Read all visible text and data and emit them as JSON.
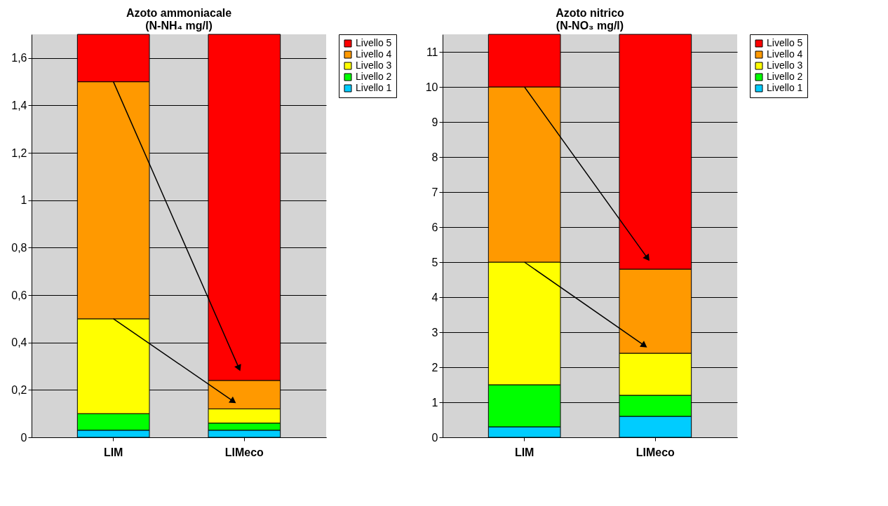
{
  "chart_data": [
    {
      "type": "bar",
      "stacked": true,
      "title": "Azoto ammoniacale\n(N-NH₄ mg/l)",
      "categories": [
        "LIM",
        "LIMeco"
      ],
      "series": [
        {
          "name": "Livello 1",
          "color": "#00ccff",
          "values": [
            0.03,
            0.03
          ]
        },
        {
          "name": "Livello 2",
          "color": "#00ff00",
          "values": [
            0.07,
            0.03
          ]
        },
        {
          "name": "Livello 3",
          "color": "#ffff00",
          "values": [
            0.4,
            0.06
          ]
        },
        {
          "name": "Livello 4",
          "color": "#ff9900",
          "values": [
            1.0,
            0.12
          ]
        },
        {
          "name": "Livello 5",
          "color": "#ff0000",
          "values": [
            0.2,
            1.46
          ]
        }
      ],
      "ylim": [
        0,
        1.7
      ],
      "yticks": [
        0,
        {
          "value": 0.2,
          "label": "0,2"
        },
        {
          "value": 0.4,
          "label": "0,4"
        },
        {
          "value": 0.6,
          "label": "0,6"
        },
        {
          "value": 0.8,
          "label": "0,8"
        },
        1,
        {
          "value": 1.2,
          "label": "1,2"
        },
        {
          "value": 1.4,
          "label": "1,4"
        },
        {
          "value": 1.6,
          "label": "1,6"
        }
      ],
      "grid": "y",
      "legend": "right"
    },
    {
      "type": "bar",
      "stacked": true,
      "title": "Azoto nitrico\n(N-NO₃ mg/l)",
      "categories": [
        "LIM",
        "LIMeco"
      ],
      "series": [
        {
          "name": "Livello 1",
          "color": "#00ccff",
          "values": [
            0.3,
            0.6
          ]
        },
        {
          "name": "Livello 2",
          "color": "#00ff00",
          "values": [
            1.2,
            0.6
          ]
        },
        {
          "name": "Livello 3",
          "color": "#ffff00",
          "values": [
            3.5,
            1.2
          ]
        },
        {
          "name": "Livello 4",
          "color": "#ff9900",
          "values": [
            5.0,
            2.4
          ]
        },
        {
          "name": "Livello 5",
          "color": "#ff0000",
          "values": [
            1.5,
            6.7
          ]
        }
      ],
      "ylim": [
        0,
        11.5
      ],
      "yticks": [
        0,
        1,
        2,
        3,
        4,
        5,
        6,
        7,
        8,
        9,
        10,
        11
      ],
      "grid": "y",
      "legend": "right"
    }
  ]
}
